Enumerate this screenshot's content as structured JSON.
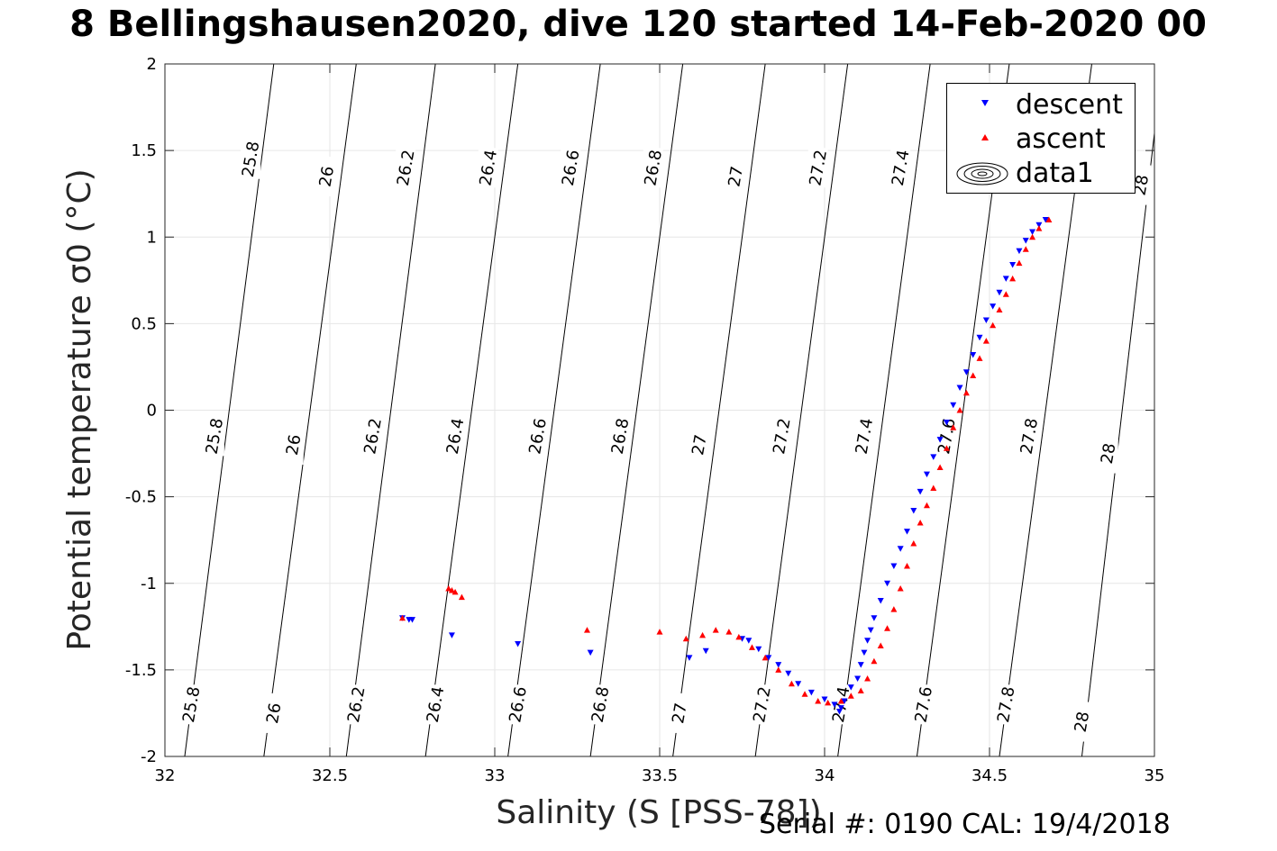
{
  "title": "8 Bellingshausen2020, dive 120 started 14-Feb-2020 00",
  "footer": "Serial #: 0190  CAL: 19/4/2018",
  "chart_data": {
    "type": "scatter",
    "title": "8 Bellingshausen2020, dive 120 started 14-Feb-2020 00",
    "xlabel": "Salinity (S [PSS-78])",
    "ylabel": "Potential temperature σ0 (°C)",
    "xlim": [
      32,
      35
    ],
    "ylim": [
      -2,
      2
    ],
    "grid": true,
    "legend_position": "top-right",
    "x_ticks": [
      "32",
      "32.5",
      "33",
      "33.5",
      "34",
      "34.5",
      "35"
    ],
    "y_ticks": [
      "-2",
      "-1.5",
      "-1",
      "-0.5",
      "0",
      "0.5",
      "1",
      "1.5",
      "2"
    ],
    "legend": [
      "descent",
      "ascent",
      "data1"
    ],
    "colors": {
      "descent": "#0000ff",
      "ascent": "#ff0000",
      "contour": "#000000"
    },
    "contours": [
      {
        "label": "25.8",
        "points": [
          [
            32.06,
            -2
          ],
          [
            32.33,
            2
          ]
        ]
      },
      {
        "label": "26",
        "points": [
          [
            32.3,
            -2
          ],
          [
            32.58,
            2
          ]
        ]
      },
      {
        "label": "26.2",
        "points": [
          [
            32.55,
            -2
          ],
          [
            32.82,
            2
          ]
        ]
      },
      {
        "label": "26.4",
        "points": [
          [
            32.79,
            -2
          ],
          [
            33.07,
            2
          ]
        ]
      },
      {
        "label": "26.6",
        "points": [
          [
            33.04,
            -2
          ],
          [
            33.32,
            2
          ]
        ]
      },
      {
        "label": "26.8",
        "points": [
          [
            33.29,
            -2
          ],
          [
            33.57,
            2
          ]
        ]
      },
      {
        "label": "27",
        "points": [
          [
            33.54,
            -2
          ],
          [
            33.82,
            2
          ]
        ]
      },
      {
        "label": "27.2",
        "points": [
          [
            33.79,
            -2
          ],
          [
            34.07,
            2
          ]
        ]
      },
      {
        "label": "27.4",
        "points": [
          [
            34.04,
            -2
          ],
          [
            34.32,
            2
          ]
        ]
      },
      {
        "label": "27.6",
        "points": [
          [
            34.28,
            -2
          ],
          [
            34.56,
            2
          ]
        ]
      },
      {
        "label": "27.8",
        "points": [
          [
            34.53,
            -2
          ],
          [
            34.81,
            2
          ]
        ]
      },
      {
        "label": "28",
        "points": [
          [
            34.78,
            -2
          ],
          [
            35.0,
            1.6
          ]
        ]
      }
    ],
    "contour_labels": [
      {
        "text": "25.8",
        "s": 32.26,
        "t": 1.45
      },
      {
        "text": "26",
        "s": 32.49,
        "t": 1.35
      },
      {
        "text": "26.2",
        "s": 32.73,
        "t": 1.4
      },
      {
        "text": "26.4",
        "s": 32.98,
        "t": 1.4
      },
      {
        "text": "26.6",
        "s": 33.23,
        "t": 1.4
      },
      {
        "text": "26.8",
        "s": 33.48,
        "t": 1.4
      },
      {
        "text": "27",
        "s": 33.73,
        "t": 1.35
      },
      {
        "text": "27.2",
        "s": 33.98,
        "t": 1.4
      },
      {
        "text": "27.4",
        "s": 34.23,
        "t": 1.4
      },
      {
        "text": "28",
        "s": 34.96,
        "t": 1.3
      },
      {
        "text": "25.8",
        "s": 32.15,
        "t": -0.15
      },
      {
        "text": "26",
        "s": 32.39,
        "t": -0.2
      },
      {
        "text": "26.2",
        "s": 32.63,
        "t": -0.15
      },
      {
        "text": "26.4",
        "s": 32.88,
        "t": -0.15
      },
      {
        "text": "26.6",
        "s": 33.13,
        "t": -0.15
      },
      {
        "text": "26.8",
        "s": 33.38,
        "t": -0.15
      },
      {
        "text": "27",
        "s": 33.62,
        "t": -0.2
      },
      {
        "text": "27.2",
        "s": 33.87,
        "t": -0.15
      },
      {
        "text": "27.4",
        "s": 34.12,
        "t": -0.15
      },
      {
        "text": "27.6",
        "s": 34.37,
        "t": -0.15
      },
      {
        "text": "27.8",
        "s": 34.62,
        "t": -0.15
      },
      {
        "text": "28",
        "s": 34.86,
        "t": -0.25
      },
      {
        "text": "25.8",
        "s": 32.08,
        "t": -1.7
      },
      {
        "text": "26",
        "s": 32.33,
        "t": -1.75
      },
      {
        "text": "26.2",
        "s": 32.58,
        "t": -1.7
      },
      {
        "text": "26.4",
        "s": 32.82,
        "t": -1.7
      },
      {
        "text": "26.6",
        "s": 33.07,
        "t": -1.7
      },
      {
        "text": "26.8",
        "s": 33.32,
        "t": -1.7
      },
      {
        "text": "27",
        "s": 33.56,
        "t": -1.75
      },
      {
        "text": "27.2",
        "s": 33.81,
        "t": -1.7
      },
      {
        "text": "27.4",
        "s": 34.05,
        "t": -1.7
      },
      {
        "text": "27.6",
        "s": 34.3,
        "t": -1.7
      },
      {
        "text": "27.8",
        "s": 34.55,
        "t": -1.7
      },
      {
        "text": "28",
        "s": 34.78,
        "t": -1.8
      }
    ],
    "series": [
      {
        "name": "descent",
        "points": [
          [
            32.72,
            -1.2
          ],
          [
            32.74,
            -1.21
          ],
          [
            32.75,
            -1.21
          ],
          [
            32.87,
            -1.3
          ],
          [
            33.07,
            -1.35
          ],
          [
            33.29,
            -1.4
          ],
          [
            33.59,
            -1.43
          ],
          [
            33.64,
            -1.39
          ],
          [
            33.75,
            -1.32
          ],
          [
            33.77,
            -1.33
          ],
          [
            33.8,
            -1.38
          ],
          [
            33.83,
            -1.43
          ],
          [
            33.86,
            -1.47
          ],
          [
            33.89,
            -1.52
          ],
          [
            33.92,
            -1.58
          ],
          [
            33.96,
            -1.63
          ],
          [
            34.0,
            -1.67
          ],
          [
            34.03,
            -1.7
          ],
          [
            34.045,
            -1.74
          ],
          [
            34.05,
            -1.72
          ],
          [
            34.06,
            -1.68
          ],
          [
            34.08,
            -1.6
          ],
          [
            34.1,
            -1.55
          ],
          [
            34.11,
            -1.47
          ],
          [
            34.12,
            -1.4
          ],
          [
            34.13,
            -1.33
          ],
          [
            34.14,
            -1.27
          ],
          [
            34.15,
            -1.2
          ],
          [
            34.17,
            -1.1
          ],
          [
            34.19,
            -1.0
          ],
          [
            34.21,
            -0.9
          ],
          [
            34.23,
            -0.8
          ],
          [
            34.25,
            -0.7
          ],
          [
            34.27,
            -0.58
          ],
          [
            34.29,
            -0.47
          ],
          [
            34.31,
            -0.37
          ],
          [
            34.33,
            -0.27
          ],
          [
            34.35,
            -0.17
          ],
          [
            34.37,
            -0.07
          ],
          [
            34.39,
            0.03
          ],
          [
            34.41,
            0.13
          ],
          [
            34.43,
            0.22
          ],
          [
            34.45,
            0.32
          ],
          [
            34.47,
            0.42
          ],
          [
            34.49,
            0.52
          ],
          [
            34.51,
            0.6
          ],
          [
            34.53,
            0.68
          ],
          [
            34.55,
            0.76
          ],
          [
            34.57,
            0.84
          ],
          [
            34.59,
            0.92
          ],
          [
            34.61,
            0.98
          ],
          [
            34.63,
            1.03
          ],
          [
            34.65,
            1.07
          ],
          [
            34.67,
            1.1
          ]
        ]
      },
      {
        "name": "ascent",
        "points": [
          [
            32.72,
            -1.2
          ],
          [
            32.86,
            -1.03
          ],
          [
            32.87,
            -1.04
          ],
          [
            32.88,
            -1.05
          ],
          [
            32.9,
            -1.08
          ],
          [
            33.28,
            -1.27
          ],
          [
            33.5,
            -1.28
          ],
          [
            33.58,
            -1.32
          ],
          [
            33.63,
            -1.3
          ],
          [
            33.67,
            -1.27
          ],
          [
            33.71,
            -1.28
          ],
          [
            33.74,
            -1.31
          ],
          [
            33.78,
            -1.37
          ],
          [
            33.82,
            -1.43
          ],
          [
            33.86,
            -1.5
          ],
          [
            33.9,
            -1.58
          ],
          [
            33.94,
            -1.64
          ],
          [
            33.98,
            -1.68
          ],
          [
            34.01,
            -1.69
          ],
          [
            34.05,
            -1.68
          ],
          [
            34.08,
            -1.65
          ],
          [
            34.11,
            -1.62
          ],
          [
            34.13,
            -1.55
          ],
          [
            34.15,
            -1.45
          ],
          [
            34.17,
            -1.36
          ],
          [
            34.19,
            -1.26
          ],
          [
            34.21,
            -1.15
          ],
          [
            34.23,
            -1.03
          ],
          [
            34.25,
            -0.9
          ],
          [
            34.27,
            -0.77
          ],
          [
            34.29,
            -0.65
          ],
          [
            34.31,
            -0.55
          ],
          [
            34.33,
            -0.45
          ],
          [
            34.35,
            -0.33
          ],
          [
            34.37,
            -0.22
          ],
          [
            34.39,
            -0.1
          ],
          [
            34.41,
            0.0
          ],
          [
            34.43,
            0.1
          ],
          [
            34.45,
            0.2
          ],
          [
            34.47,
            0.3
          ],
          [
            34.49,
            0.4
          ],
          [
            34.51,
            0.49
          ],
          [
            34.53,
            0.58
          ],
          [
            34.55,
            0.67
          ],
          [
            34.57,
            0.76
          ],
          [
            34.59,
            0.85
          ],
          [
            34.61,
            0.93
          ],
          [
            34.63,
            1.0
          ],
          [
            34.65,
            1.05
          ],
          [
            34.68,
            1.1
          ]
        ]
      }
    ]
  }
}
